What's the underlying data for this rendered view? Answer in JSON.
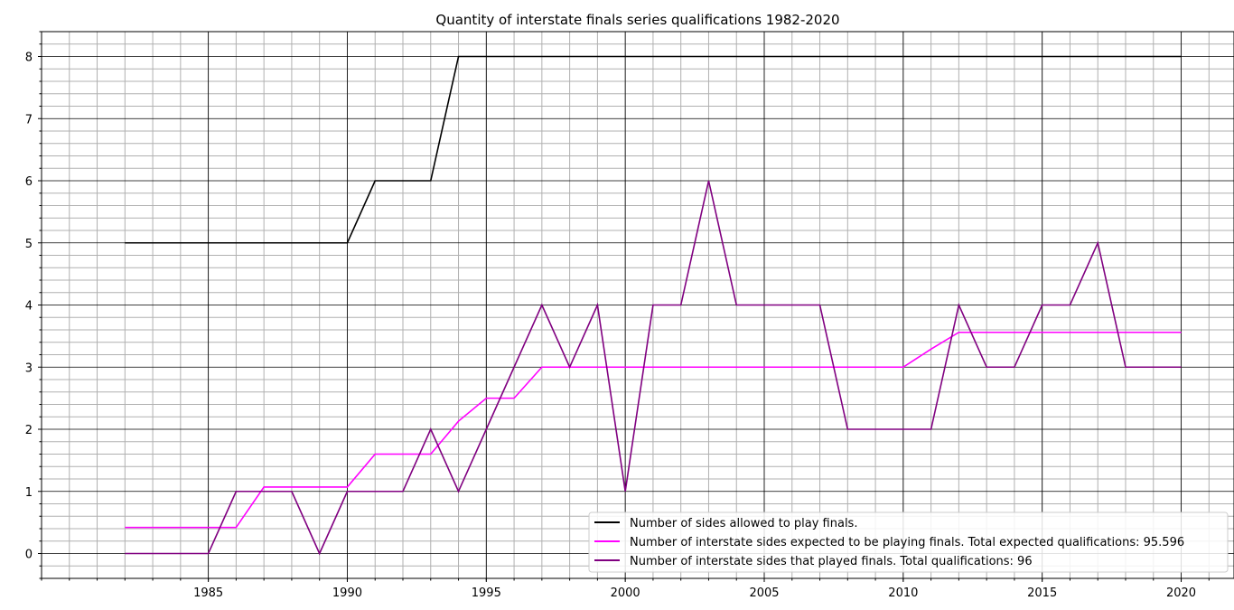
{
  "chart_data": {
    "type": "line",
    "title": "Quantity of interstate finals series qualifications 1982-2020",
    "xlabel": "",
    "ylabel": "",
    "xlim": [
      1979.0,
      2021.9
    ],
    "ylim": [
      -0.4,
      8.4
    ],
    "x_ticks": [
      1985,
      1990,
      1995,
      2000,
      2005,
      2010,
      2015,
      2020
    ],
    "y_ticks": [
      0,
      1,
      2,
      3,
      4,
      5,
      6,
      7,
      8
    ],
    "grid": "major and minor",
    "legend_position": "lower-right",
    "x": [
      1982,
      1983,
      1984,
      1985,
      1986,
      1987,
      1988,
      1989,
      1990,
      1991,
      1992,
      1993,
      1994,
      1995,
      1996,
      1997,
      1998,
      1999,
      2000,
      2001,
      2002,
      2003,
      2004,
      2005,
      2006,
      2007,
      2008,
      2009,
      2010,
      2011,
      2012,
      2013,
      2014,
      2015,
      2016,
      2017,
      2018,
      2019,
      2020
    ],
    "series": [
      {
        "name": "Number of sides allowed to play finals.",
        "color": "#000000",
        "values": [
          5,
          5,
          5,
          5,
          5,
          5,
          5,
          5,
          5,
          6,
          6,
          6,
          8,
          8,
          8,
          8,
          8,
          8,
          8,
          8,
          8,
          8,
          8,
          8,
          8,
          8,
          8,
          8,
          8,
          8,
          8,
          8,
          8,
          8,
          8,
          8,
          8,
          8,
          8
        ]
      },
      {
        "name": "Number of interstate sides expected to be playing finals. Total expected qualifications: 95.596",
        "color": "#ff00ff",
        "values": [
          0.42,
          0.42,
          0.42,
          0.42,
          0.42,
          1.07,
          1.07,
          1.07,
          1.07,
          1.6,
          1.6,
          1.6,
          2.13,
          2.5,
          2.5,
          3,
          3,
          3,
          3,
          3,
          3,
          3,
          3,
          3,
          3,
          3,
          3,
          3,
          3,
          3.29,
          3.56,
          3.56,
          3.56,
          3.56,
          3.56,
          3.56,
          3.56,
          3.56,
          3.56
        ]
      },
      {
        "name": "Number of interstate sides that played finals. Total qualifications: 96",
        "color": "#800080",
        "values": [
          0,
          0,
          0,
          0,
          1,
          1,
          1,
          0,
          1,
          1,
          1,
          2,
          1,
          2,
          3,
          4,
          3,
          4,
          1,
          4,
          4,
          6,
          4,
          4,
          4,
          4,
          2,
          2,
          2,
          2,
          4,
          3,
          3,
          4,
          4,
          5,
          3,
          3,
          3
        ]
      }
    ]
  }
}
